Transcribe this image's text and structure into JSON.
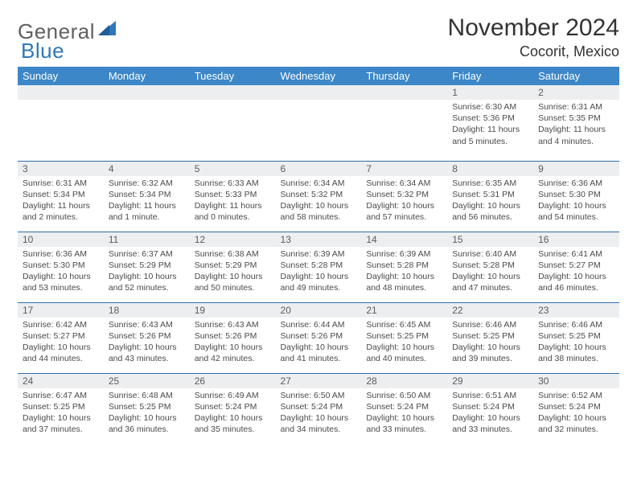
{
  "colors": {
    "header_bg": "#3c87c7",
    "header_text": "#ffffff",
    "cell_rule": "#2f6fa5",
    "daynum_bg": "#eceef0",
    "daynum_text": "#5c5c5c",
    "body_text": "#4a4a4a",
    "title_text": "#333333",
    "logo_gray": "#606060",
    "logo_blue": "#2f78b7",
    "page_bg": "#ffffff"
  },
  "typography": {
    "title_fontsize": 30,
    "location_fontsize": 18,
    "weekday_fontsize": 13,
    "daynum_fontsize": 12,
    "body_fontsize": 10.5,
    "logo_fontsize": 26
  },
  "logo": {
    "part1": "General",
    "part2": "Blue"
  },
  "title": "November 2024",
  "location": "Cocorit, Mexico",
  "weekdays": [
    "Sunday",
    "Monday",
    "Tuesday",
    "Wednesday",
    "Thursday",
    "Friday",
    "Saturday"
  ],
  "calendar_type": "month-grid",
  "columns": 7,
  "rows": 5,
  "cells": [
    {
      "blank": true
    },
    {
      "blank": true
    },
    {
      "blank": true
    },
    {
      "blank": true
    },
    {
      "blank": true
    },
    {
      "day": "1",
      "sunrise": "Sunrise: 6:30 AM",
      "sunset": "Sunset: 5:36 PM",
      "day1": "Daylight: 11 hours",
      "day2": "and 5 minutes."
    },
    {
      "day": "2",
      "sunrise": "Sunrise: 6:31 AM",
      "sunset": "Sunset: 5:35 PM",
      "day1": "Daylight: 11 hours",
      "day2": "and 4 minutes."
    },
    {
      "day": "3",
      "sunrise": "Sunrise: 6:31 AM",
      "sunset": "Sunset: 5:34 PM",
      "day1": "Daylight: 11 hours",
      "day2": "and 2 minutes."
    },
    {
      "day": "4",
      "sunrise": "Sunrise: 6:32 AM",
      "sunset": "Sunset: 5:34 PM",
      "day1": "Daylight: 11 hours",
      "day2": "and 1 minute."
    },
    {
      "day": "5",
      "sunrise": "Sunrise: 6:33 AM",
      "sunset": "Sunset: 5:33 PM",
      "day1": "Daylight: 11 hours",
      "day2": "and 0 minutes."
    },
    {
      "day": "6",
      "sunrise": "Sunrise: 6:34 AM",
      "sunset": "Sunset: 5:32 PM",
      "day1": "Daylight: 10 hours",
      "day2": "and 58 minutes."
    },
    {
      "day": "7",
      "sunrise": "Sunrise: 6:34 AM",
      "sunset": "Sunset: 5:32 PM",
      "day1": "Daylight: 10 hours",
      "day2": "and 57 minutes."
    },
    {
      "day": "8",
      "sunrise": "Sunrise: 6:35 AM",
      "sunset": "Sunset: 5:31 PM",
      "day1": "Daylight: 10 hours",
      "day2": "and 56 minutes."
    },
    {
      "day": "9",
      "sunrise": "Sunrise: 6:36 AM",
      "sunset": "Sunset: 5:30 PM",
      "day1": "Daylight: 10 hours",
      "day2": "and 54 minutes."
    },
    {
      "day": "10",
      "sunrise": "Sunrise: 6:36 AM",
      "sunset": "Sunset: 5:30 PM",
      "day1": "Daylight: 10 hours",
      "day2": "and 53 minutes."
    },
    {
      "day": "11",
      "sunrise": "Sunrise: 6:37 AM",
      "sunset": "Sunset: 5:29 PM",
      "day1": "Daylight: 10 hours",
      "day2": "and 52 minutes."
    },
    {
      "day": "12",
      "sunrise": "Sunrise: 6:38 AM",
      "sunset": "Sunset: 5:29 PM",
      "day1": "Daylight: 10 hours",
      "day2": "and 50 minutes."
    },
    {
      "day": "13",
      "sunrise": "Sunrise: 6:39 AM",
      "sunset": "Sunset: 5:28 PM",
      "day1": "Daylight: 10 hours",
      "day2": "and 49 minutes."
    },
    {
      "day": "14",
      "sunrise": "Sunrise: 6:39 AM",
      "sunset": "Sunset: 5:28 PM",
      "day1": "Daylight: 10 hours",
      "day2": "and 48 minutes."
    },
    {
      "day": "15",
      "sunrise": "Sunrise: 6:40 AM",
      "sunset": "Sunset: 5:28 PM",
      "day1": "Daylight: 10 hours",
      "day2": "and 47 minutes."
    },
    {
      "day": "16",
      "sunrise": "Sunrise: 6:41 AM",
      "sunset": "Sunset: 5:27 PM",
      "day1": "Daylight: 10 hours",
      "day2": "and 46 minutes."
    },
    {
      "day": "17",
      "sunrise": "Sunrise: 6:42 AM",
      "sunset": "Sunset: 5:27 PM",
      "day1": "Daylight: 10 hours",
      "day2": "and 44 minutes."
    },
    {
      "day": "18",
      "sunrise": "Sunrise: 6:43 AM",
      "sunset": "Sunset: 5:26 PM",
      "day1": "Daylight: 10 hours",
      "day2": "and 43 minutes."
    },
    {
      "day": "19",
      "sunrise": "Sunrise: 6:43 AM",
      "sunset": "Sunset: 5:26 PM",
      "day1": "Daylight: 10 hours",
      "day2": "and 42 minutes."
    },
    {
      "day": "20",
      "sunrise": "Sunrise: 6:44 AM",
      "sunset": "Sunset: 5:26 PM",
      "day1": "Daylight: 10 hours",
      "day2": "and 41 minutes."
    },
    {
      "day": "21",
      "sunrise": "Sunrise: 6:45 AM",
      "sunset": "Sunset: 5:25 PM",
      "day1": "Daylight: 10 hours",
      "day2": "and 40 minutes."
    },
    {
      "day": "22",
      "sunrise": "Sunrise: 6:46 AM",
      "sunset": "Sunset: 5:25 PM",
      "day1": "Daylight: 10 hours",
      "day2": "and 39 minutes."
    },
    {
      "day": "23",
      "sunrise": "Sunrise: 6:46 AM",
      "sunset": "Sunset: 5:25 PM",
      "day1": "Daylight: 10 hours",
      "day2": "and 38 minutes."
    },
    {
      "day": "24",
      "sunrise": "Sunrise: 6:47 AM",
      "sunset": "Sunset: 5:25 PM",
      "day1": "Daylight: 10 hours",
      "day2": "and 37 minutes."
    },
    {
      "day": "25",
      "sunrise": "Sunrise: 6:48 AM",
      "sunset": "Sunset: 5:25 PM",
      "day1": "Daylight: 10 hours",
      "day2": "and 36 minutes."
    },
    {
      "day": "26",
      "sunrise": "Sunrise: 6:49 AM",
      "sunset": "Sunset: 5:24 PM",
      "day1": "Daylight: 10 hours",
      "day2": "and 35 minutes."
    },
    {
      "day": "27",
      "sunrise": "Sunrise: 6:50 AM",
      "sunset": "Sunset: 5:24 PM",
      "day1": "Daylight: 10 hours",
      "day2": "and 34 minutes."
    },
    {
      "day": "28",
      "sunrise": "Sunrise: 6:50 AM",
      "sunset": "Sunset: 5:24 PM",
      "day1": "Daylight: 10 hours",
      "day2": "and 33 minutes."
    },
    {
      "day": "29",
      "sunrise": "Sunrise: 6:51 AM",
      "sunset": "Sunset: 5:24 PM",
      "day1": "Daylight: 10 hours",
      "day2": "and 33 minutes."
    },
    {
      "day": "30",
      "sunrise": "Sunrise: 6:52 AM",
      "sunset": "Sunset: 5:24 PM",
      "day1": "Daylight: 10 hours",
      "day2": "and 32 minutes."
    }
  ]
}
